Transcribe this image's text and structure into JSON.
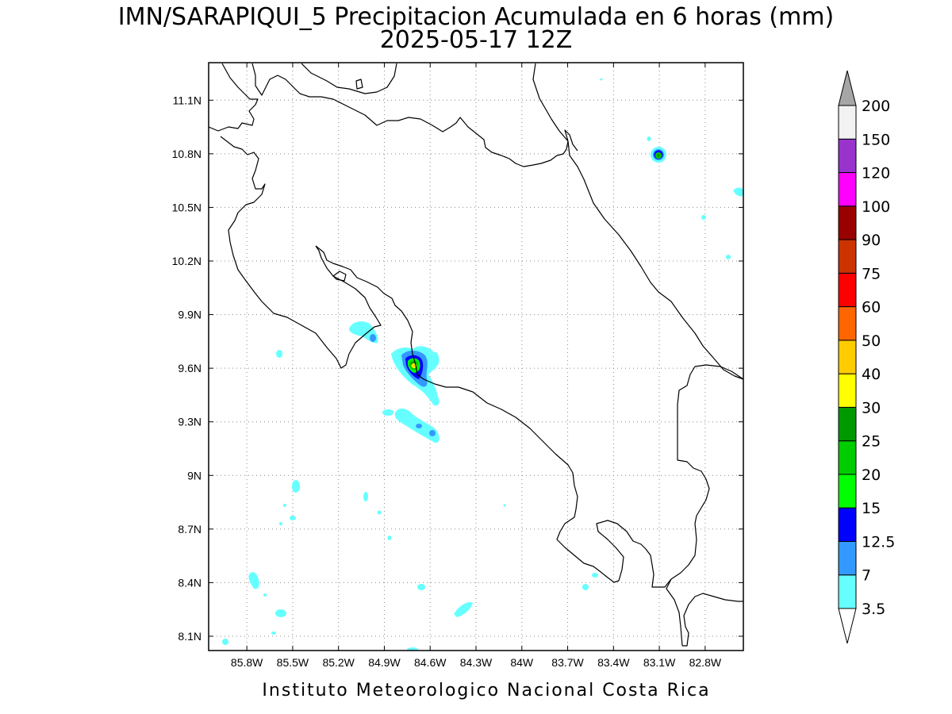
{
  "title": {
    "line1": "IMN/SARAPIQUI_5 Precipitacion Acumulada en 6 horas (mm)",
    "line2": "2025-05-17 12Z"
  },
  "footer": "Instituto Meteorologico Nacional Costa Rica",
  "map": {
    "lon_range": [
      -86.05,
      -82.55
    ],
    "lat_range": [
      8.02,
      11.31
    ],
    "x_ticks": [
      "85.8W",
      "85.5W",
      "85.2W",
      "84.9W",
      "84.6W",
      "84.3W",
      "84W",
      "83.7W",
      "83.4W",
      "83.1W",
      "82.8W"
    ],
    "x_tick_values": [
      -85.8,
      -85.5,
      -85.2,
      -84.9,
      -84.6,
      -84.3,
      -84.0,
      -83.7,
      -83.4,
      -83.1,
      -82.8
    ],
    "y_ticks": [
      "8.1N",
      "8.4N",
      "8.7N",
      "9N",
      "9.3N",
      "9.6N",
      "9.9N",
      "10.2N",
      "10.5N",
      "10.8N",
      "11.1N"
    ],
    "y_tick_values": [
      8.1,
      8.4,
      8.7,
      9.0,
      9.3,
      9.6,
      9.9,
      10.2,
      10.5,
      10.8,
      11.1
    ],
    "grid": true
  },
  "colorbar": {
    "labels": [
      "3.5",
      "7",
      "12.5",
      "15",
      "20",
      "25",
      "30",
      "40",
      "50",
      "60",
      "75",
      "90",
      "100",
      "120",
      "150",
      "200"
    ],
    "colors": [
      "#66ffff",
      "#3399ff",
      "#0000ff",
      "#00ff00",
      "#00cc00",
      "#009900",
      "#ffff00",
      "#ffcc00",
      "#ff6600",
      "#ff0000",
      "#cc3300",
      "#990000",
      "#ff00ff",
      "#9933cc",
      "#f2f2f2"
    ],
    "over_color": "#a6a6a6",
    "under_color": "#ffffff"
  },
  "precip_blobs": [
    {
      "lon": -84.64,
      "lat": 9.59,
      "max": "40",
      "note": "Sarapiqui core"
    },
    {
      "lon": -83.07,
      "lat": 10.78,
      "max": "25"
    },
    {
      "lon": -84.93,
      "lat": 9.78,
      "max": "7"
    },
    {
      "lon": -84.51,
      "lat": 9.22,
      "max": "7"
    }
  ]
}
